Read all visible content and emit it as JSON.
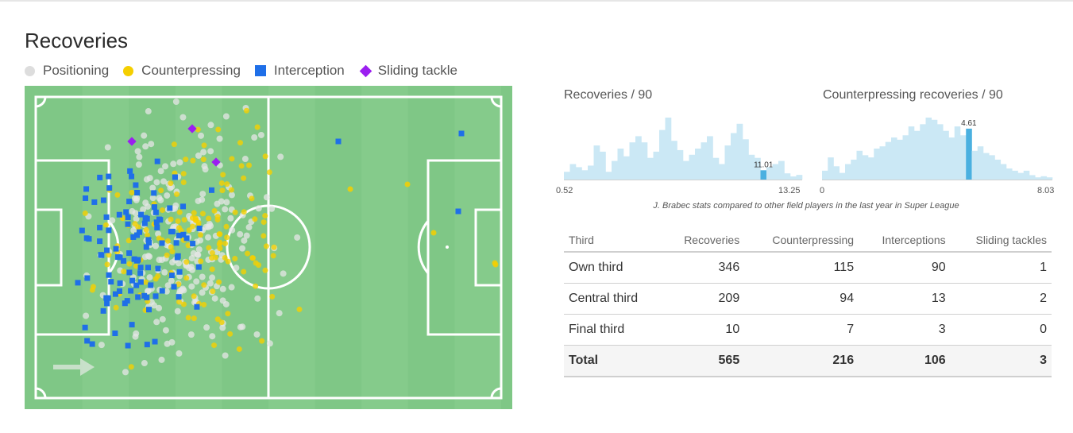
{
  "header": {
    "title": "Recoveries"
  },
  "legend": [
    {
      "label": "Positioning",
      "shape": "circle",
      "color": "#dddddd"
    },
    {
      "label": "Counterpressing",
      "shape": "circle",
      "color": "#f5cf00"
    },
    {
      "label": "Interception",
      "shape": "square",
      "color": "#1f6fe8"
    },
    {
      "label": "Sliding tackle",
      "shape": "diamond",
      "color": "#9b1ff0"
    }
  ],
  "colors": {
    "pitch": "#7fc786",
    "pitch_stripe": "#8bcd8f",
    "positioning": "#e6e6e6",
    "counterpressing": "#f5cf00",
    "interception": "#1f6fe8",
    "sliding": "#9b1ff0",
    "hist_bar": "#cbe8f5",
    "hist_highlight": "#4ab0e0"
  },
  "histograms": [
    {
      "title": "Recoveries / 90",
      "min_label": "0.52",
      "max_label": "13.25",
      "value_label": "11.01",
      "highlight_index": 33,
      "values": [
        5,
        10,
        8,
        6,
        9,
        22,
        18,
        5,
        12,
        20,
        15,
        24,
        28,
        24,
        14,
        18,
        32,
        40,
        25,
        19,
        12,
        16,
        20,
        24,
        28,
        14,
        10,
        22,
        30,
        36,
        26,
        16,
        14,
        6,
        8,
        10,
        12,
        4,
        2,
        3
      ]
    },
    {
      "title": "Counterpressing recoveries / 90",
      "min_label": "0",
      "max_label": "8.03",
      "value_label": "4.61",
      "highlight_index": 25,
      "values": [
        8,
        20,
        12,
        6,
        14,
        18,
        26,
        22,
        20,
        28,
        30,
        34,
        38,
        36,
        40,
        48,
        44,
        50,
        56,
        54,
        50,
        44,
        38,
        48,
        40,
        46,
        26,
        30,
        24,
        22,
        18,
        14,
        10,
        8,
        6,
        8,
        4,
        2,
        3,
        2
      ]
    }
  ],
  "caption": "J. Brabec stats compared to other field players in the last year in Super League",
  "table": {
    "headers": [
      "Third",
      "Recoveries",
      "Counterpressing",
      "Interceptions",
      "Sliding tackles"
    ],
    "rows": [
      [
        "Own third",
        "346",
        "115",
        "90",
        "1"
      ],
      [
        "Central third",
        "209",
        "94",
        "13",
        "2"
      ],
      [
        "Final third",
        "10",
        "7",
        "3",
        "0"
      ]
    ],
    "total": [
      "Total",
      "565",
      "216",
      "106",
      "3"
    ]
  }
}
